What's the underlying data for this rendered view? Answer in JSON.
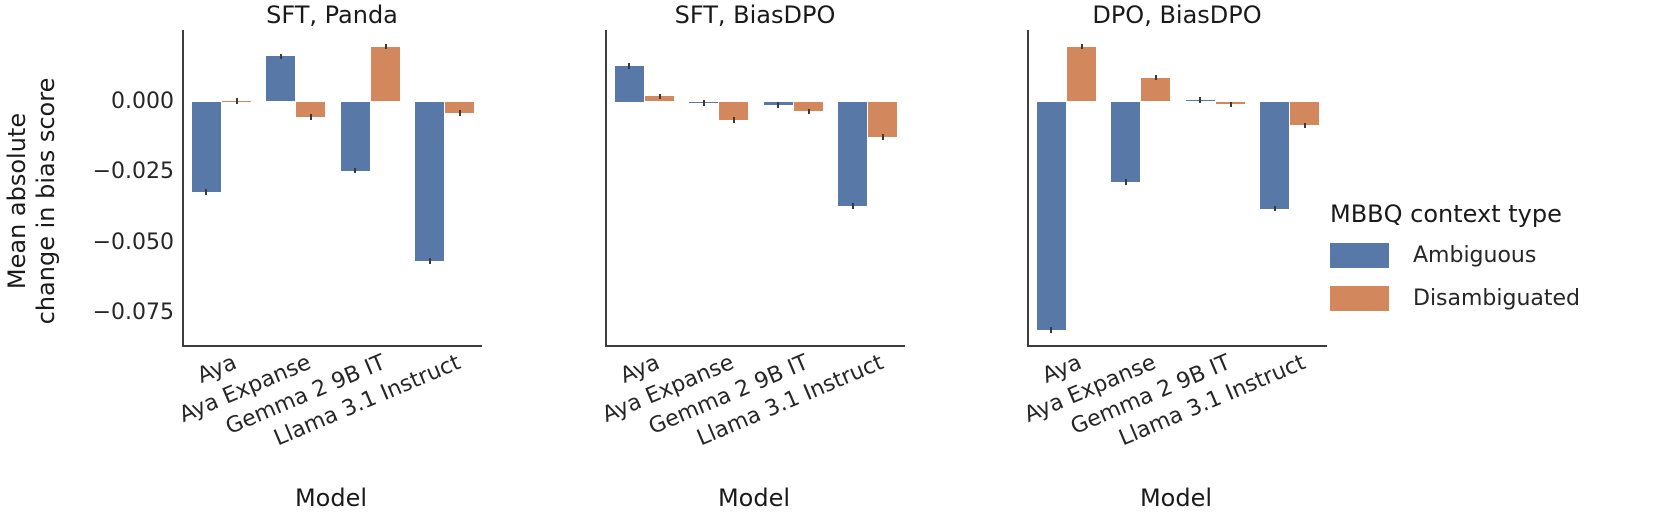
{
  "figure": {
    "ylabel_line1": "Mean absolute",
    "ylabel_line2": "change in bias score",
    "error_bar": 0.001,
    "colors": {
      "ambiguous": "#5878a8",
      "disambiguated": "#d2885c",
      "spine": "#3d3d3d",
      "error": "#3a3a3a",
      "text": "#262626"
    }
  },
  "legend": {
    "title": "MBBQ context type",
    "items": [
      {
        "label": "Ambiguous",
        "color": "#5878a8"
      },
      {
        "label": "Disambiguated",
        "color": "#d2885c"
      }
    ]
  },
  "chart_data": [
    {
      "type": "bar",
      "title": "SFT, Panda",
      "xlabel": "Model",
      "ylabel": "Mean absolute change in bias score",
      "categories": [
        "Aya",
        "Aya Expanse",
        "Gemma 2 9B IT",
        "Llama 3.1 Instruct"
      ],
      "series": [
        {
          "name": "Ambiguous",
          "values": [
            -0.032,
            0.016,
            -0.0245,
            -0.0565
          ]
        },
        {
          "name": "Disambiguated",
          "values": [
            0.0002,
            -0.0055,
            0.0195,
            -0.004
          ]
        }
      ],
      "ylim": [
        -0.0863,
        0.0253
      ],
      "yticks": [
        0.0,
        -0.025,
        -0.05,
        -0.075
      ],
      "ytick_labels": [
        "0.000",
        "−0.025",
        "−0.050",
        "−0.075"
      ],
      "show_ytick_labels": true,
      "grid": false,
      "legend_position": "right of third subplot"
    },
    {
      "type": "bar",
      "title": "SFT, BiasDPO",
      "xlabel": "Model",
      "ylabel": "Mean absolute change in bias score",
      "categories": [
        "Aya",
        "Aya Expanse",
        "Gemma 2 9B IT",
        "Llama 3.1 Instruct"
      ],
      "series": [
        {
          "name": "Ambiguous",
          "values": [
            0.0125,
            -0.0005,
            -0.0012,
            -0.037
          ]
        },
        {
          "name": "Disambiguated",
          "values": [
            0.0018,
            -0.0065,
            -0.0035,
            -0.0125
          ]
        }
      ],
      "ylim": [
        -0.0863,
        0.0253
      ],
      "yticks": [
        0.0,
        -0.025,
        -0.05,
        -0.075
      ],
      "ytick_labels": [
        "0.000",
        "−0.025",
        "−0.050",
        "−0.075"
      ],
      "show_ytick_labels": false,
      "grid": false
    },
    {
      "type": "bar",
      "title": "DPO, BiasDPO",
      "xlabel": "Model",
      "ylabel": "Mean absolute change in bias score",
      "categories": [
        "Aya",
        "Aya Expanse",
        "Gemma 2 9B IT",
        "Llama 3.1 Instruct"
      ],
      "series": [
        {
          "name": "Ambiguous",
          "values": [
            -0.081,
            -0.0285,
            0.0005,
            -0.038
          ]
        },
        {
          "name": "Disambiguated",
          "values": [
            0.0195,
            0.0085,
            -0.001,
            -0.0085
          ]
        }
      ],
      "ylim": [
        -0.0863,
        0.0253
      ],
      "yticks": [
        0.0,
        -0.025,
        -0.05,
        -0.075
      ],
      "ytick_labels": [
        "0.000",
        "−0.025",
        "−0.050",
        "−0.075"
      ],
      "show_ytick_labels": false,
      "grid": false
    }
  ]
}
